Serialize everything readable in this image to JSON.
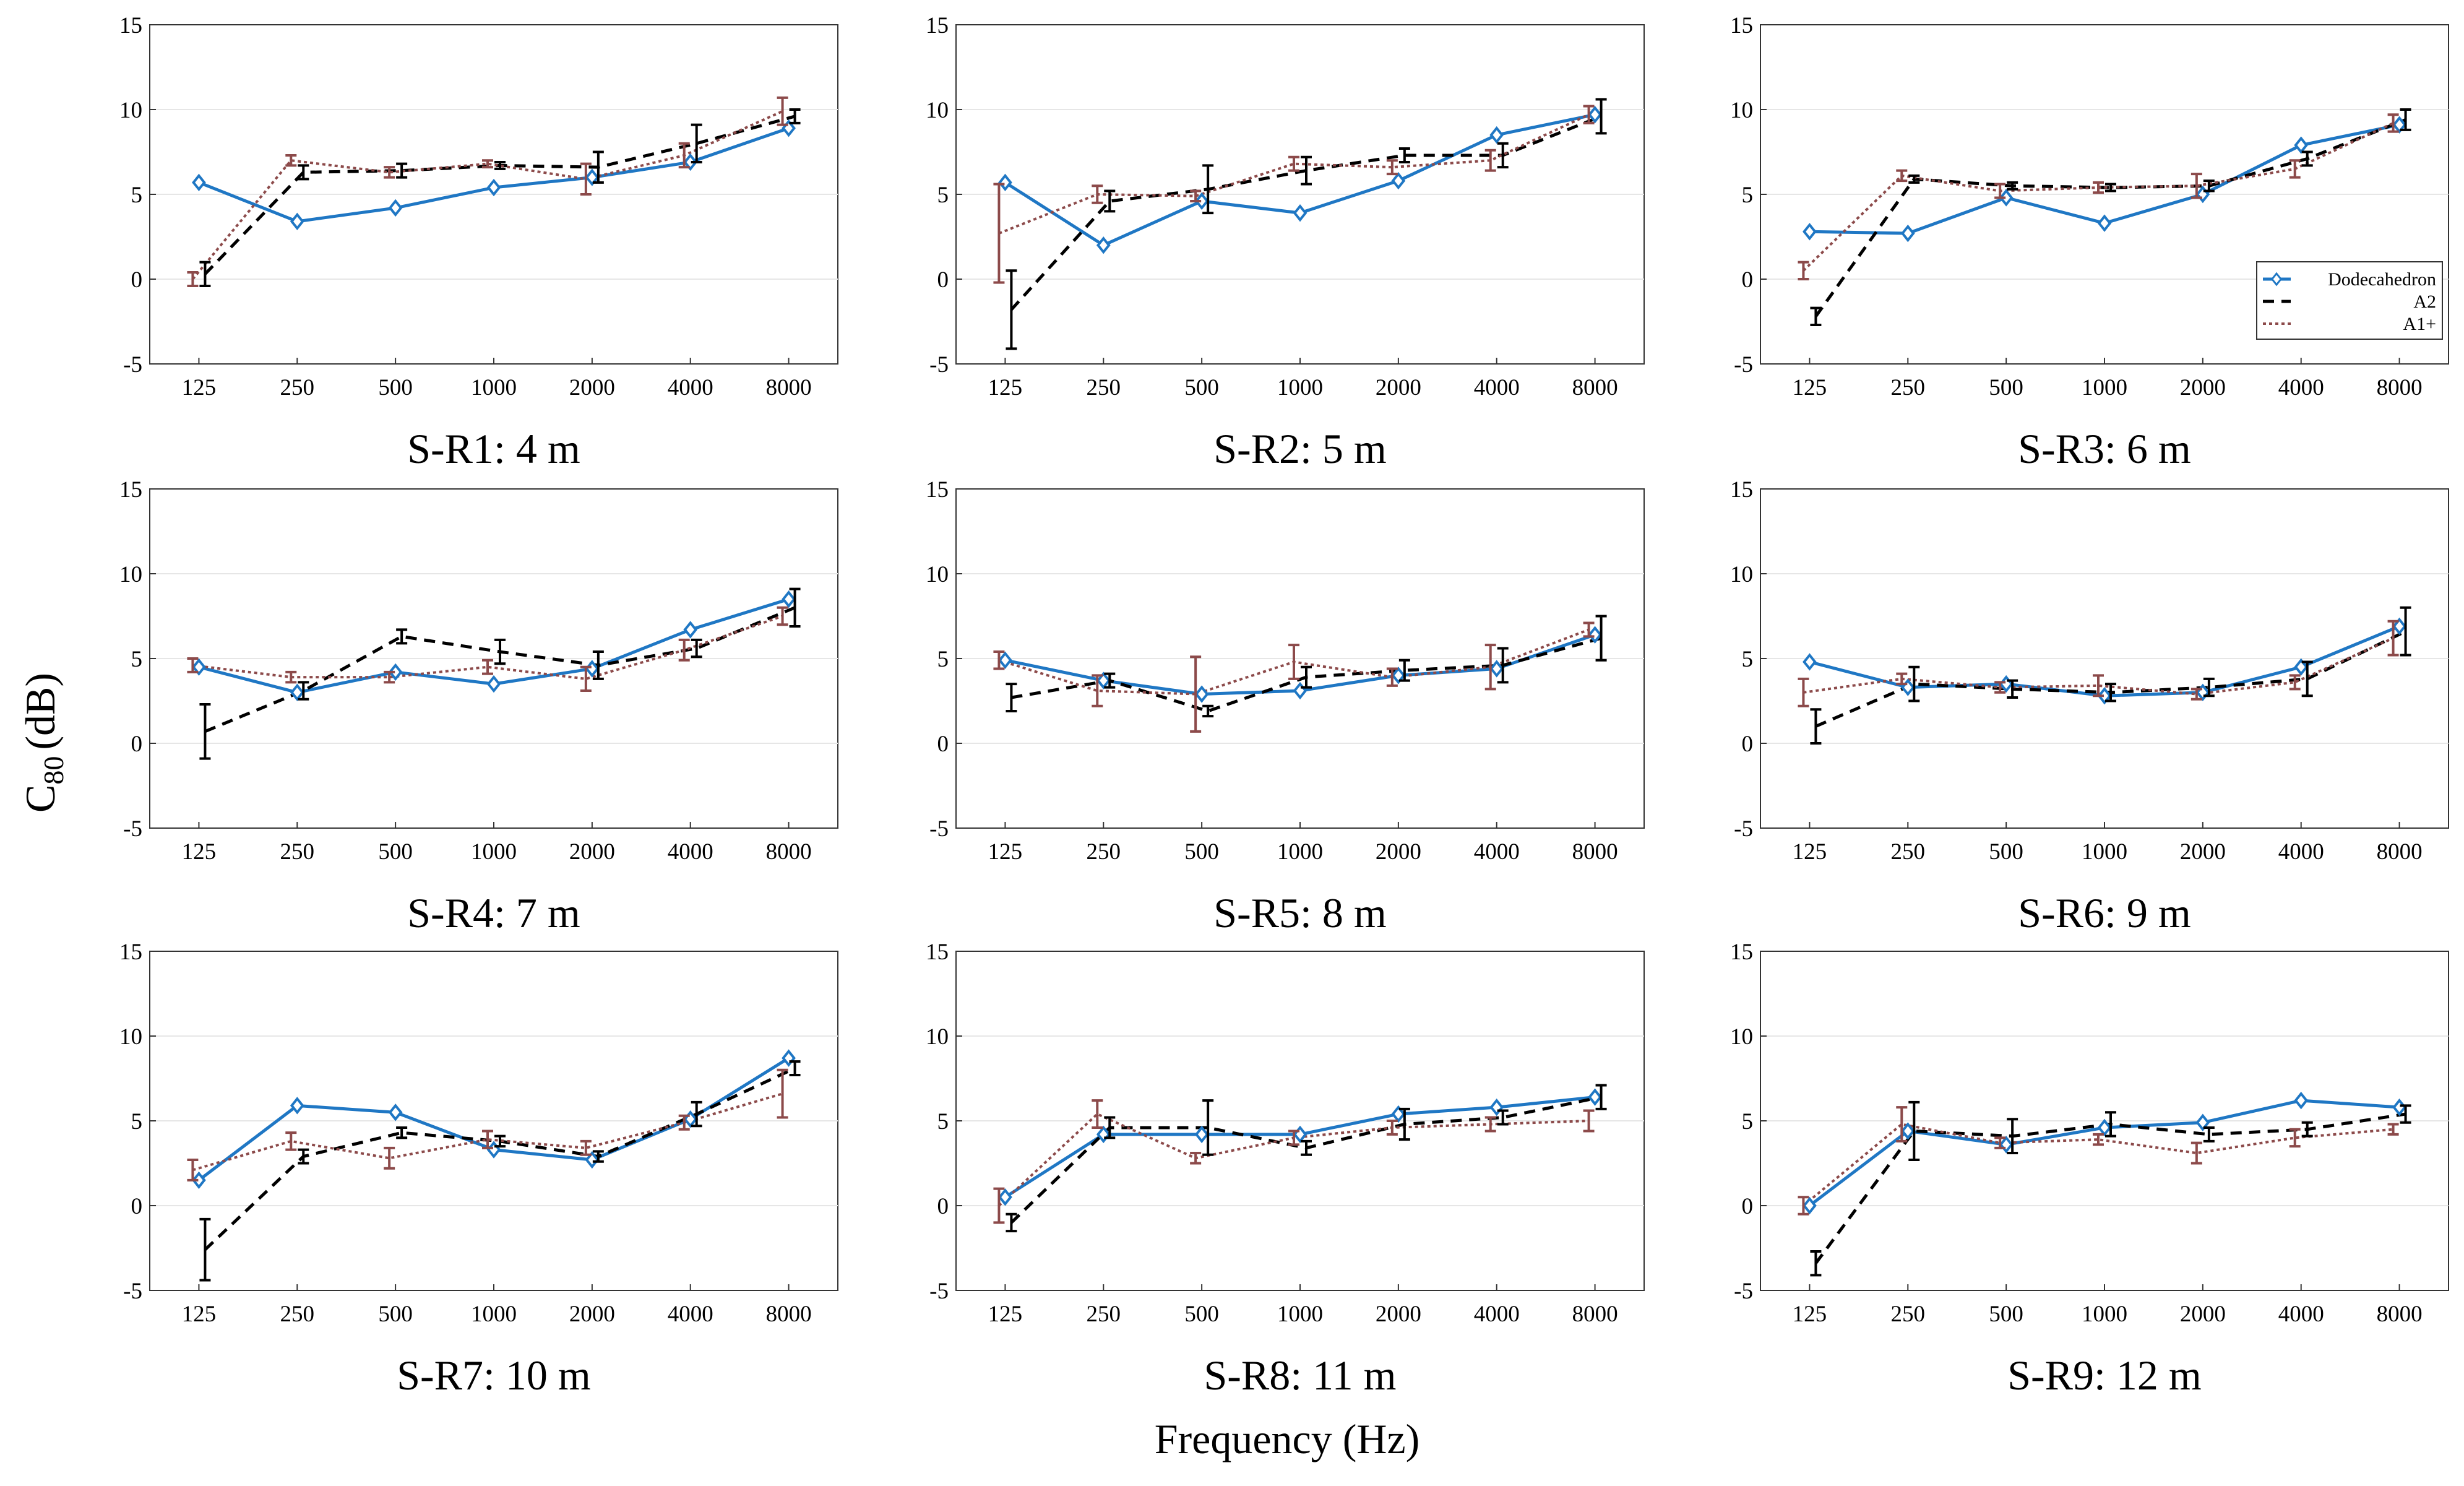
{
  "figure": {
    "ylabel_main": "C",
    "ylabel_sub": "80",
    "ylabel_unit": "(dB)",
    "xlabel": "Frequency (Hz)"
  },
  "legend": {
    "entries": [
      "Dodecahedron",
      "A2",
      "A1+"
    ]
  },
  "colors": {
    "dodecahedron": "#1f77c4",
    "a2": "#000000",
    "a1plus": "#8c4a4a",
    "grid": "#e6e6e6",
    "axes": "#333333"
  },
  "chart_data": [
    {
      "type": "line",
      "title": "S-R1: 4 m",
      "categories": [
        "125",
        "250",
        "500",
        "1000",
        "2000",
        "4000",
        "8000"
      ],
      "yticks": [
        "-5",
        "0",
        "5",
        "10",
        "15"
      ],
      "ylim": [
        -5,
        15
      ],
      "series": [
        {
          "name": "Dodecahedron",
          "values": [
            5.7,
            3.4,
            4.2,
            5.4,
            6.0,
            6.9,
            8.9
          ],
          "errors": [
            0,
            0,
            0,
            0,
            0,
            0,
            0
          ]
        },
        {
          "name": "A2",
          "values": [
            0.3,
            6.3,
            6.4,
            6.7,
            6.6,
            8.0,
            9.6
          ],
          "errors": [
            0.7,
            0.4,
            0.4,
            0.2,
            0.9,
            1.1,
            0.4
          ]
        },
        {
          "name": "A1+",
          "values": [
            0.0,
            7.0,
            6.3,
            6.8,
            5.9,
            7.3,
            9.9
          ],
          "errors": [
            0.4,
            0.3,
            0.3,
            0.2,
            0.9,
            0.7,
            0.8
          ]
        }
      ]
    },
    {
      "type": "line",
      "title": "S-R2: 5 m",
      "categories": [
        "125",
        "250",
        "500",
        "1000",
        "2000",
        "4000",
        "8000"
      ],
      "yticks": [
        "-5",
        "0",
        "5",
        "10",
        "15"
      ],
      "ylim": [
        -5,
        15
      ],
      "series": [
        {
          "name": "Dodecahedron",
          "values": [
            5.7,
            2.0,
            4.6,
            3.9,
            5.8,
            8.5,
            9.7
          ],
          "errors": [
            0,
            0,
            0,
            0,
            0,
            0,
            0
          ]
        },
        {
          "name": "A2",
          "values": [
            -1.8,
            4.6,
            5.3,
            6.4,
            7.3,
            7.3,
            9.6
          ],
          "errors": [
            2.3,
            0.6,
            1.4,
            0.8,
            0.4,
            0.7,
            1.0
          ]
        },
        {
          "name": "A1+",
          "values": [
            2.7,
            5.0,
            4.9,
            6.8,
            6.6,
            7.0,
            9.7
          ],
          "errors": [
            2.9,
            0.5,
            0.3,
            0.4,
            0.4,
            0.6,
            0.5
          ]
        }
      ]
    },
    {
      "type": "line",
      "title": "S-R3: 6 m",
      "categories": [
        "125",
        "250",
        "500",
        "1000",
        "2000",
        "4000",
        "8000"
      ],
      "yticks": [
        "-5",
        "0",
        "5",
        "10",
        "15"
      ],
      "ylim": [
        -5,
        15
      ],
      "series": [
        {
          "name": "Dodecahedron",
          "values": [
            2.8,
            2.7,
            4.8,
            3.3,
            5.0,
            7.9,
            9.1
          ],
          "errors": [
            0,
            0,
            0,
            0,
            0,
            0,
            0
          ]
        },
        {
          "name": "A2",
          "values": [
            -2.2,
            5.9,
            5.5,
            5.4,
            5.5,
            7.1,
            9.4
          ],
          "errors": [
            0.5,
            0.2,
            0.2,
            0.2,
            0.3,
            0.4,
            0.6
          ]
        },
        {
          "name": "A1+",
          "values": [
            0.5,
            6.1,
            5.2,
            5.4,
            5.5,
            6.5,
            9.2
          ],
          "errors": [
            0.5,
            0.3,
            0.4,
            0.3,
            0.7,
            0.5,
            0.5
          ]
        }
      ]
    },
    {
      "type": "line",
      "title": "S-R4: 7 m",
      "categories": [
        "125",
        "250",
        "500",
        "1000",
        "2000",
        "4000",
        "8000"
      ],
      "yticks": [
        "-5",
        "0",
        "5",
        "10",
        "15"
      ],
      "ylim": [
        -5,
        15
      ],
      "series": [
        {
          "name": "Dodecahedron",
          "values": [
            4.5,
            3.0,
            4.2,
            3.5,
            4.4,
            6.7,
            8.5
          ],
          "errors": [
            0,
            0,
            0,
            0,
            0,
            0,
            0
          ]
        },
        {
          "name": "A2",
          "values": [
            0.7,
            3.1,
            6.3,
            5.4,
            4.6,
            5.6,
            8.0
          ],
          "errors": [
            1.6,
            0.5,
            0.4,
            0.7,
            0.8,
            0.5,
            1.1
          ]
        },
        {
          "name": "A1+",
          "values": [
            4.6,
            3.9,
            3.9,
            4.5,
            3.8,
            5.5,
            7.5
          ],
          "errors": [
            0.4,
            0.3,
            0.3,
            0.4,
            0.7,
            0.6,
            0.5
          ]
        }
      ]
    },
    {
      "type": "line",
      "title": "S-R5: 8 m",
      "categories": [
        "125",
        "250",
        "500",
        "1000",
        "2000",
        "4000",
        "8000"
      ],
      "yticks": [
        "-5",
        "0",
        "5",
        "10",
        "15"
      ],
      "ylim": [
        -5,
        15
      ],
      "series": [
        {
          "name": "Dodecahedron",
          "values": [
            4.9,
            3.7,
            2.9,
            3.1,
            4.0,
            4.4,
            6.4
          ],
          "errors": [
            0,
            0,
            0,
            0,
            0,
            0,
            0
          ]
        },
        {
          "name": "A2",
          "values": [
            2.7,
            3.7,
            1.9,
            3.9,
            4.3,
            4.6,
            6.2
          ],
          "errors": [
            0.8,
            0.4,
            0.3,
            0.6,
            0.6,
            1.0,
            1.3
          ]
        },
        {
          "name": "A1+",
          "values": [
            4.9,
            3.1,
            2.9,
            4.8,
            3.9,
            4.5,
            6.7
          ],
          "errors": [
            0.5,
            0.9,
            2.2,
            1.0,
            0.5,
            1.3,
            0.4
          ]
        }
      ]
    },
    {
      "type": "line",
      "title": "S-R6: 9 m",
      "categories": [
        "125",
        "250",
        "500",
        "1000",
        "2000",
        "4000",
        "8000"
      ],
      "yticks": [
        "-5",
        "0",
        "5",
        "10",
        "15"
      ],
      "ylim": [
        -5,
        15
      ],
      "series": [
        {
          "name": "Dodecahedron",
          "values": [
            4.8,
            3.3,
            3.5,
            2.8,
            3.0,
            4.5,
            6.9
          ],
          "errors": [
            0,
            0,
            0,
            0,
            0,
            0,
            0
          ]
        },
        {
          "name": "A2",
          "values": [
            1.0,
            3.5,
            3.2,
            3.0,
            3.3,
            3.8,
            6.6
          ],
          "errors": [
            1.0,
            1.0,
            0.5,
            0.5,
            0.5,
            1.0,
            1.4
          ]
        },
        {
          "name": "A1+",
          "values": [
            3.0,
            3.8,
            3.3,
            3.4,
            2.9,
            3.6,
            6.2
          ],
          "errors": [
            0.8,
            0.3,
            0.3,
            0.6,
            0.3,
            0.4,
            1.0
          ]
        }
      ]
    },
    {
      "type": "line",
      "title": "S-R7: 10 m",
      "categories": [
        "125",
        "250",
        "500",
        "1000",
        "2000",
        "4000",
        "8000"
      ],
      "yticks": [
        "-5",
        "0",
        "5",
        "10",
        "15"
      ],
      "ylim": [
        -5,
        15
      ],
      "series": [
        {
          "name": "Dodecahedron",
          "values": [
            1.5,
            5.9,
            5.5,
            3.3,
            2.7,
            5.1,
            8.7
          ],
          "errors": [
            0,
            0,
            0,
            0,
            0,
            0,
            0
          ]
        },
        {
          "name": "A2",
          "values": [
            -2.6,
            2.9,
            4.3,
            3.8,
            2.9,
            5.4,
            8.1
          ],
          "errors": [
            1.8,
            0.4,
            0.3,
            0.3,
            0.3,
            0.7,
            0.4
          ]
        },
        {
          "name": "A1+",
          "values": [
            2.1,
            3.8,
            2.8,
            3.9,
            3.4,
            4.9,
            6.6
          ],
          "errors": [
            0.6,
            0.5,
            0.6,
            0.5,
            0.4,
            0.4,
            1.4
          ]
        }
      ]
    },
    {
      "type": "line",
      "title": "S-R8: 11 m",
      "categories": [
        "125",
        "250",
        "500",
        "1000",
        "2000",
        "4000",
        "8000"
      ],
      "yticks": [
        "-5",
        "0",
        "5",
        "10",
        "15"
      ],
      "ylim": [
        -5,
        15
      ],
      "series": [
        {
          "name": "Dodecahedron",
          "values": [
            0.5,
            4.2,
            4.2,
            4.2,
            5.4,
            5.8,
            6.4
          ],
          "errors": [
            0,
            0,
            0,
            0,
            0,
            0,
            0
          ]
        },
        {
          "name": "A2",
          "values": [
            -1.0,
            4.6,
            4.6,
            3.4,
            4.8,
            5.2,
            6.4
          ],
          "errors": [
            0.5,
            0.6,
            1.6,
            0.4,
            0.9,
            0.4,
            0.7
          ]
        },
        {
          "name": "A1+",
          "values": [
            0.0,
            5.4,
            2.8,
            4.0,
            4.6,
            4.8,
            5.0
          ],
          "errors": [
            1.0,
            0.8,
            0.3,
            0.4,
            0.4,
            0.4,
            0.6
          ]
        }
      ]
    },
    {
      "type": "line",
      "title": "S-R9: 12 m",
      "categories": [
        "125",
        "250",
        "500",
        "1000",
        "2000",
        "4000",
        "8000"
      ],
      "yticks": [
        "-5",
        "0",
        "5",
        "10",
        "15"
      ],
      "ylim": [
        -5,
        15
      ],
      "series": [
        {
          "name": "Dodecahedron",
          "values": [
            0.0,
            4.4,
            3.6,
            4.6,
            4.9,
            6.2,
            5.8
          ],
          "errors": [
            0,
            0,
            0,
            0,
            0,
            0,
            0
          ]
        },
        {
          "name": "A2",
          "values": [
            -3.4,
            4.4,
            4.1,
            4.8,
            4.2,
            4.5,
            5.4
          ],
          "errors": [
            0.7,
            1.7,
            1.0,
            0.7,
            0.4,
            0.4,
            0.5
          ]
        },
        {
          "name": "A1+",
          "values": [
            0.0,
            4.8,
            3.7,
            3.9,
            3.1,
            4.0,
            4.5
          ],
          "errors": [
            0.5,
            1.0,
            0.3,
            0.3,
            0.6,
            0.5,
            0.3
          ]
        }
      ]
    }
  ]
}
